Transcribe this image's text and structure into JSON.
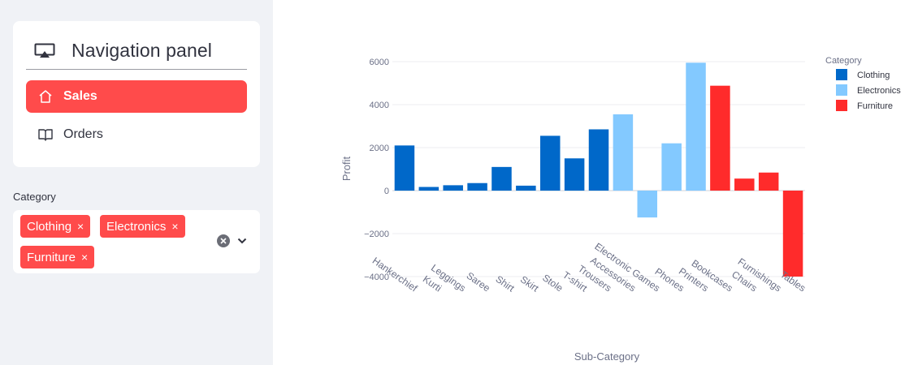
{
  "sidebar": {
    "nav": {
      "title": "Navigation panel",
      "title_icon": "monitor-cast-icon",
      "items": [
        {
          "label": "Sales",
          "icon": "home-icon",
          "active": true
        },
        {
          "label": "Orders",
          "icon": "book-icon",
          "active": false
        }
      ]
    },
    "filter": {
      "label": "Category",
      "tags": [
        "Clothing",
        "Electronics",
        "Furniture"
      ],
      "remove_glyph": "×"
    }
  },
  "colors": {
    "accent": "#ff4b4b",
    "sidebar_bg": "#f0f2f6",
    "Clothing": "#0068c9",
    "Electronics": "#83c9ff",
    "Furniture": "#ff2b2b"
  },
  "chart_data": {
    "type": "bar",
    "xlabel": "Sub-Category",
    "ylabel": "Profit",
    "ylim": [
      -4000,
      6000
    ],
    "yticks": [
      6000,
      4000,
      2000,
      0,
      -2000,
      -4000
    ],
    "ytick_labels": [
      "6000",
      "4000",
      "2000",
      "0",
      "−2000",
      "−4000"
    ],
    "grid": true,
    "legend": {
      "title": "Category",
      "placement": "top-right",
      "entries": [
        "Clothing",
        "Electronics",
        "Furniture"
      ]
    },
    "categories": [
      "Hankerchief",
      "Kurti",
      "Leggings",
      "Saree",
      "Shirt",
      "Skirt",
      "Stole",
      "T-shirt",
      "Trousers",
      "Accessories",
      "Electronic Games",
      "Phones",
      "Printers",
      "Bookcases",
      "Chairs",
      "Furnishings",
      "Tables"
    ],
    "category_group": [
      "Clothing",
      "Clothing",
      "Clothing",
      "Clothing",
      "Clothing",
      "Clothing",
      "Clothing",
      "Clothing",
      "Clothing",
      "Electronics",
      "Electronics",
      "Electronics",
      "Electronics",
      "Furniture",
      "Furniture",
      "Furniture",
      "Furniture"
    ],
    "values": [
      2100,
      170,
      250,
      350,
      1100,
      230,
      2550,
      1500,
      2850,
      3550,
      -1250,
      2200,
      5950,
      4880,
      560,
      840,
      -4000
    ]
  }
}
